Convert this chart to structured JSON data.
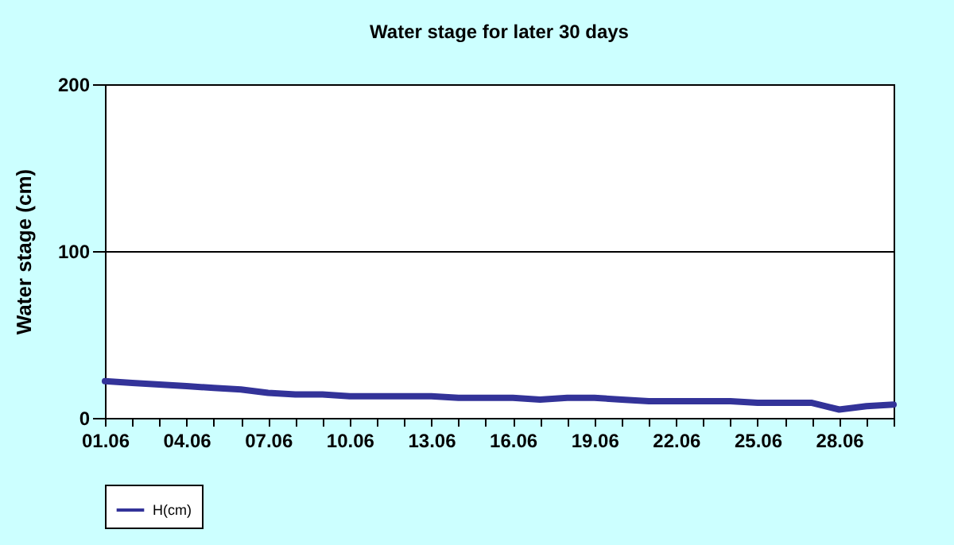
{
  "chart_data": {
    "type": "line",
    "title": "Water stage for later 30 days",
    "ylabel": "Water stage (cm)",
    "categories": [
      "01.06",
      null,
      null,
      "04.06",
      null,
      null,
      "07.06",
      null,
      null,
      "10.06",
      null,
      null,
      "13.06",
      null,
      null,
      "16.06",
      null,
      null,
      "19.06",
      null,
      null,
      "22.06",
      null,
      null,
      "25.06",
      null,
      null,
      "28.06",
      null,
      null
    ],
    "series": [
      {
        "name": "H(cm)",
        "color": "#333399",
        "values": [
          22,
          21,
          20,
          19,
          18,
          17,
          15,
          14,
          14,
          13,
          13,
          13,
          13,
          12,
          12,
          12,
          11,
          12,
          12,
          11,
          10,
          10,
          10,
          10,
          9,
          9,
          9,
          5,
          7,
          8
        ]
      }
    ],
    "ylim": [
      0,
      200
    ],
    "yticks": [
      0,
      100,
      200
    ],
    "grid": "y",
    "legend": "bottom",
    "marker": "none",
    "line_style": "solid"
  }
}
